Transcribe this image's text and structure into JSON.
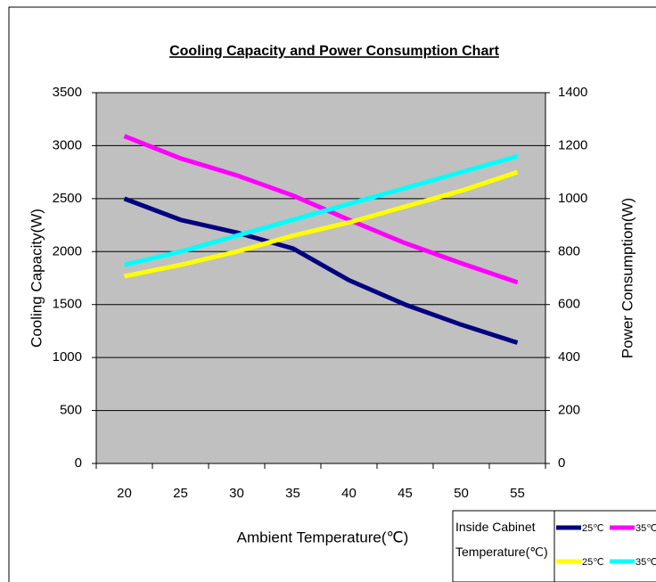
{
  "chart_data": {
    "type": "line",
    "title": "Cooling Capacity and Power Consumption Chart",
    "x_label": "Ambient Temperature(℃)",
    "y_label": "Cooling Capacity(W)",
    "y2_label": "Power Consumption(W)",
    "legend_title": "Inside Cabinet Temperature(℃)",
    "legend": "bottom-right",
    "grid": true,
    "categories": [
      "20",
      "25",
      "30",
      "35",
      "40",
      "45",
      "50",
      "55"
    ],
    "ylim": [
      0,
      3500
    ],
    "yticks": [
      0,
      500,
      1000,
      1500,
      2000,
      2500,
      3000,
      3500
    ],
    "y2lim": [
      0,
      1400
    ],
    "y2ticks": [
      0,
      200,
      400,
      600,
      800,
      1000,
      1200,
      1400
    ],
    "series": [
      {
        "name": "25℃",
        "color": "#000080",
        "values": [
          2500,
          2300,
          2180,
          2030,
          1730,
          1500,
          1310,
          1140
        ]
      },
      {
        "name": "35℃",
        "color": "#ff00ff",
        "values": [
          3090,
          2880,
          2720,
          2530,
          2300,
          2080,
          1890,
          1710
        ]
      },
      {
        "name": "25℃",
        "color": "#ffff00",
        "axis": "y2",
        "values": [
          707,
          750,
          800,
          860,
          910,
          970,
          1030,
          1100
        ]
      },
      {
        "name": "35℃",
        "color": "#00ffff",
        "axis": "y2",
        "values": [
          750,
          800,
          860,
          920,
          980,
          1040,
          1100,
          1160
        ]
      }
    ]
  }
}
